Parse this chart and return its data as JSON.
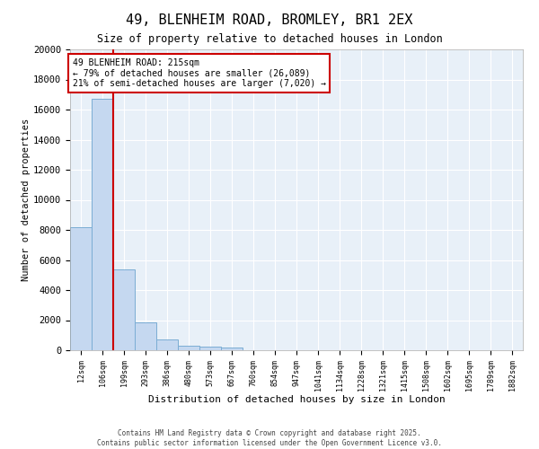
{
  "title1": "49, BLENHEIM ROAD, BROMLEY, BR1 2EX",
  "title2": "Size of property relative to detached houses in London",
  "xlabel": "Distribution of detached houses by size in London",
  "ylabel": "Number of detached properties",
  "bar_color": "#c5d8f0",
  "bar_edge_color": "#7badd4",
  "plot_bg_color": "#e8f0f8",
  "fig_bg_color": "#ffffff",
  "categories": [
    "12sqm",
    "106sqm",
    "199sqm",
    "293sqm",
    "386sqm",
    "480sqm",
    "573sqm",
    "667sqm",
    "760sqm",
    "854sqm",
    "947sqm",
    "1041sqm",
    "1134sqm",
    "1228sqm",
    "1321sqm",
    "1415sqm",
    "1508sqm",
    "1602sqm",
    "1695sqm",
    "1789sqm",
    "1882sqm"
  ],
  "values": [
    8200,
    16700,
    5400,
    1850,
    720,
    300,
    220,
    160,
    0,
    0,
    0,
    0,
    0,
    0,
    0,
    0,
    0,
    0,
    0,
    0,
    0
  ],
  "ylim": [
    0,
    20000
  ],
  "yticks": [
    0,
    2000,
    4000,
    6000,
    8000,
    10000,
    12000,
    14000,
    16000,
    18000,
    20000
  ],
  "red_line_x": 1.5,
  "annotation_title": "49 BLENHEIM ROAD: 215sqm",
  "annotation_line1": "← 79% of detached houses are smaller (26,089)",
  "annotation_line2": "21% of semi-detached houses are larger (7,020) →",
  "annotation_box_color": "#ffffff",
  "annotation_box_edge": "#cc0000",
  "red_line_color": "#cc0000",
  "footer1": "Contains HM Land Registry data © Crown copyright and database right 2025.",
  "footer2": "Contains public sector information licensed under the Open Government Licence v3.0."
}
